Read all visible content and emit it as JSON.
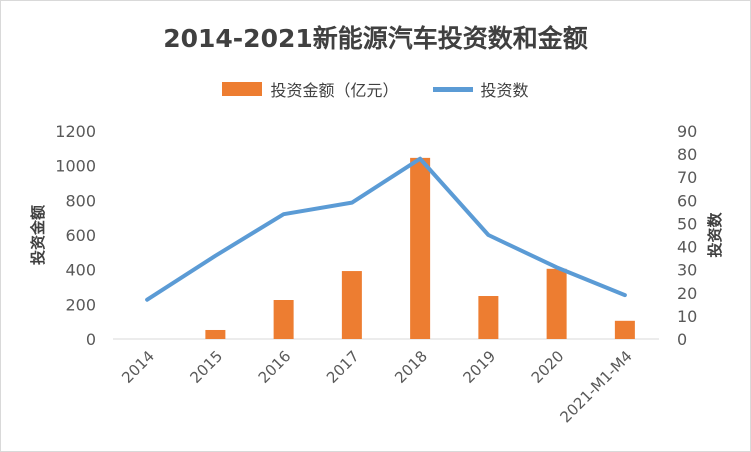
{
  "chart_data": {
    "type": "bar+line",
    "title": "2014-2021新能源汽车投资数和金额",
    "categories": [
      "2014",
      "2015",
      "2016",
      "2017",
      "2018",
      "2019",
      "2020",
      "2021-M1-M4"
    ],
    "series": [
      {
        "name": "投资金额（亿元）",
        "type": "bar",
        "axis": "left",
        "color": "#ED7D31",
        "values": [
          0,
          52,
          225,
          392,
          1045,
          248,
          405,
          105
        ]
      },
      {
        "name": "投资数",
        "type": "line",
        "axis": "right",
        "color": "#5B9BD5",
        "values": [
          17,
          36,
          54,
          59,
          78,
          45,
          31,
          19
        ]
      }
    ],
    "ylabel_left": "投资金额",
    "ylabel_right": "投资数",
    "ylim_left": [
      0,
      1200
    ],
    "yticks_left": [
      0,
      200,
      400,
      600,
      800,
      1000,
      1200
    ],
    "ylim_right": [
      0,
      90
    ],
    "yticks_right": [
      0,
      10,
      20,
      30,
      40,
      50,
      60,
      70,
      80,
      90
    ],
    "legend_position": "top-center",
    "grid": false
  }
}
